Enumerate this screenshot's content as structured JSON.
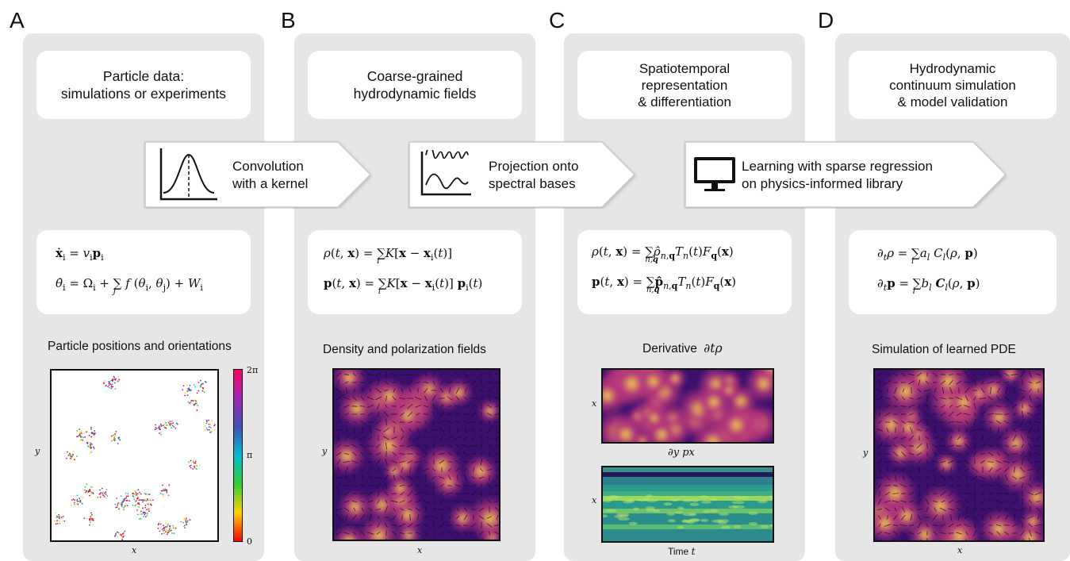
{
  "panel_letters": [
    "A",
    "B",
    "C",
    "D"
  ],
  "titles": {
    "a": [
      "Particle data:",
      "simulations or experiments"
    ],
    "b": [
      "Coarse-grained",
      "hydrodynamic fields"
    ],
    "c": [
      "Spatiotemporal",
      "representation",
      "& differentiation"
    ],
    "d": [
      "Hydrodynamic",
      "continuum simulation",
      "& model validation"
    ]
  },
  "arrows": {
    "a": [
      "Convolution",
      "with a kernel"
    ],
    "b": [
      "Projection onto",
      "spectral bases"
    ],
    "c": [
      "Learning with sparse regression",
      "on physics-informed library"
    ]
  },
  "captions": {
    "a": "Particle positions and orientations",
    "b": "Density and polarization fields",
    "c": "Derivative",
    "c_symbol": "∂tρ",
    "c_second": "∂y px",
    "d": "Simulation of learned PDE"
  },
  "axes": {
    "x": "x",
    "y": "y",
    "time": "Time",
    "time_var": "t"
  },
  "colorbar": {
    "ticks": [
      "2π",
      "π",
      "0"
    ],
    "colors": [
      "#ff0000",
      "#ffd400",
      "#33cc33",
      "#00bcd4",
      "#3f51b5",
      "#9c27b0",
      "#ff0066"
    ]
  },
  "icons": {
    "arrow_a": "gaussian-kernel-icon",
    "arrow_b": "waves-icon",
    "arrow_c": "computer-monitor-icon"
  },
  "colors": {
    "panel_bg": "#e5e6e5",
    "field_dark": "#3a0f6e",
    "field_mid": "#b5367a",
    "field_bright": "#f5d54a",
    "teal_dark": "#1b2f6b",
    "teal_mid": "#2a9a8c",
    "teal_bright": "#b5e36b"
  }
}
